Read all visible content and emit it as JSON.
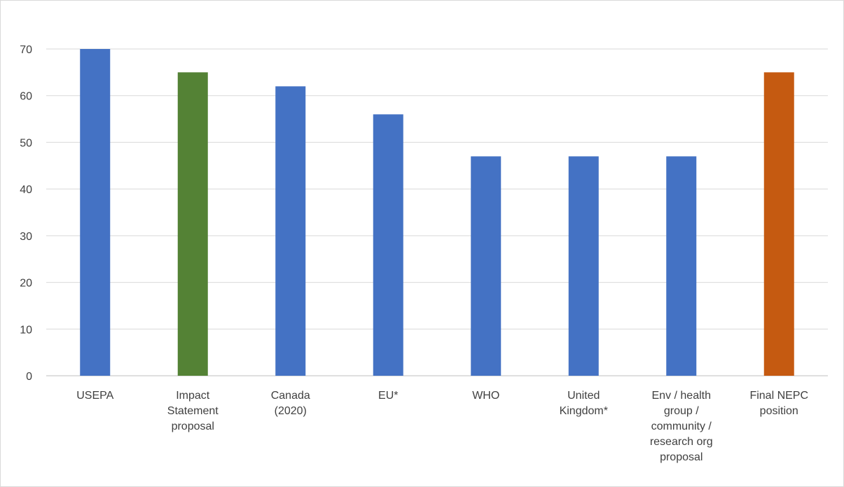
{
  "chart_data": {
    "type": "bar",
    "categories": [
      [
        "USEPA"
      ],
      [
        "Impact",
        "Statement",
        "proposal"
      ],
      [
        "Canada",
        "(2020)"
      ],
      [
        "EU*"
      ],
      [
        "WHO"
      ],
      [
        "United",
        "Kingdom*"
      ],
      [
        "Env / health",
        "group /",
        "community /",
        "research org",
        "proposal"
      ],
      [
        "Final NEPC",
        "position"
      ]
    ],
    "values": [
      70,
      65,
      62,
      56,
      47,
      47,
      47,
      65
    ],
    "bar_colors": [
      "#4472C4",
      "#548235",
      "#4472C4",
      "#4472C4",
      "#4472C4",
      "#4472C4",
      "#4472C4",
      "#C55A11"
    ],
    "title": "",
    "xlabel": "",
    "ylabel": "",
    "ylim": [
      0,
      70
    ],
    "yticks": [
      0,
      10,
      20,
      30,
      40,
      50,
      60,
      70
    ],
    "grid": true,
    "legend": "none"
  }
}
